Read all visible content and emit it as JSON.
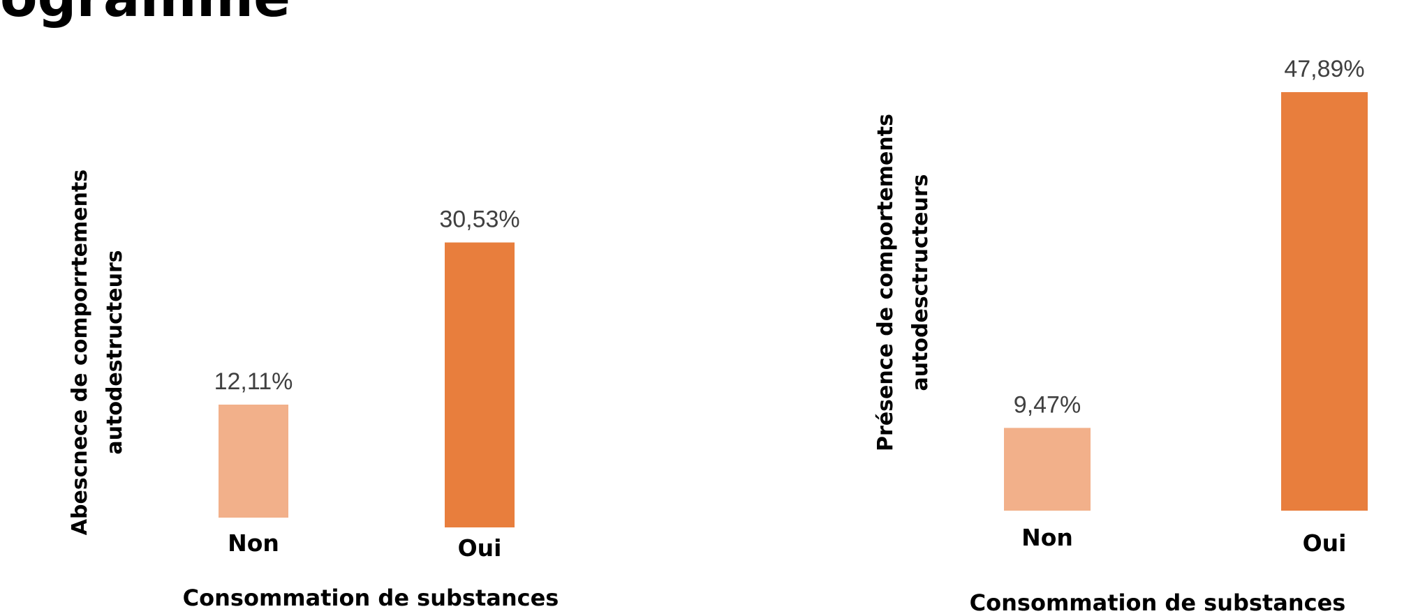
{
  "page": {
    "title": "ogramme"
  },
  "colors": {
    "non": "#F2B08A",
    "oui": "#E87E3D"
  },
  "chart_data": [
    {
      "type": "bar",
      "ylabel": [
        "Abescnece de comporrtements",
        "autodestructeurs"
      ],
      "xlabel": "Consommation de substances",
      "categories": [
        "Non",
        "Oui"
      ],
      "values": [
        12.11,
        30.53
      ],
      "value_labels": [
        "12,11%",
        "30,53%"
      ],
      "ylim": [
        0,
        37
      ]
    },
    {
      "type": "bar",
      "ylabel": [
        "Présence de comportements",
        "autodesctructeurs"
      ],
      "xlabel": "Consommation de substances",
      "categories": [
        "Non",
        "Oui"
      ],
      "values": [
        9.47,
        47.89
      ],
      "value_labels": [
        "9,47%",
        "47,89%"
      ],
      "ylim": [
        0,
        55
      ]
    }
  ]
}
